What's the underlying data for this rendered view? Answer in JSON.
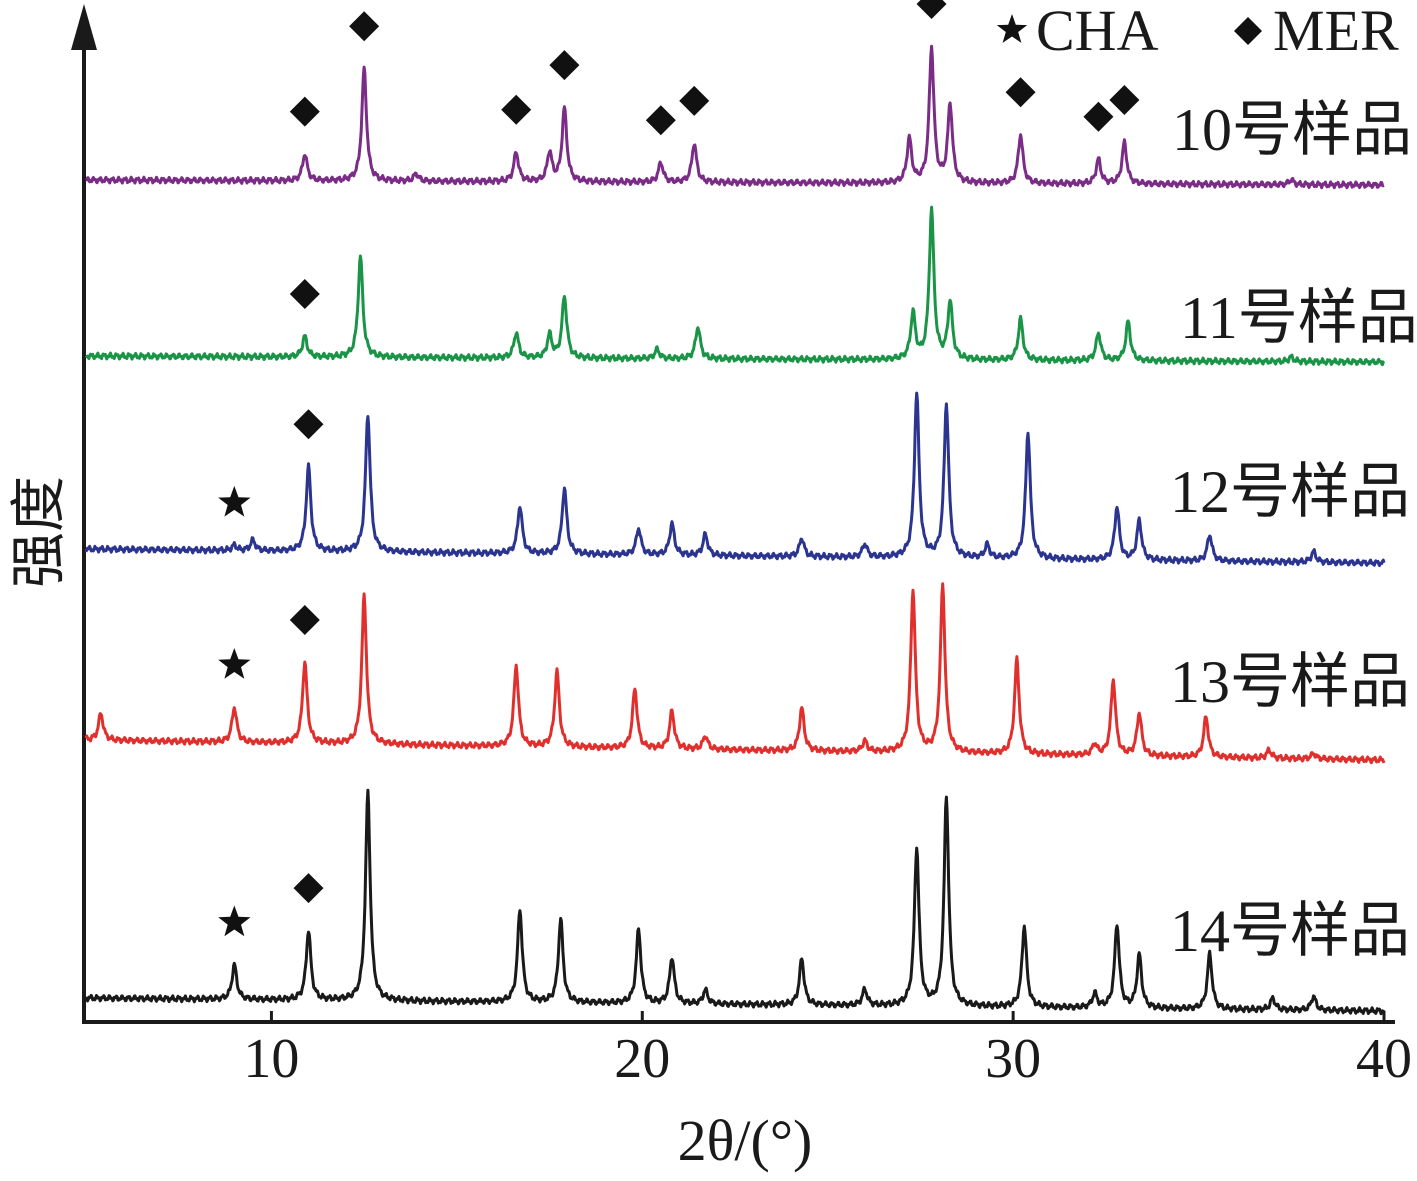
{
  "chart_data": {
    "type": "line",
    "title": "",
    "xlabel": "2θ/(°)",
    "ylabel": "强度",
    "xlim": [
      5,
      40
    ],
    "xticks": [
      "10",
      "20",
      "30",
      "40"
    ],
    "xtick_values": [
      10,
      20,
      30,
      40
    ],
    "y_ticks_shown": false,
    "legend": {
      "placement": "top-right",
      "entries": [
        {
          "marker": "star",
          "label": "CHA"
        },
        {
          "marker": "diamond",
          "label": "MER"
        }
      ]
    },
    "series": [
      {
        "name": "10号样品",
        "color": "#7a2c86",
        "baseline": 0.0,
        "peaks": [
          [
            10.9,
            0.11
          ],
          [
            12.5,
            0.46
          ],
          [
            13.9,
            0.03
          ],
          [
            16.6,
            0.12
          ],
          [
            17.5,
            0.12
          ],
          [
            17.9,
            0.3
          ],
          [
            20.5,
            0.08
          ],
          [
            21.4,
            0.16
          ],
          [
            27.2,
            0.18
          ],
          [
            27.8,
            0.55
          ],
          [
            28.3,
            0.32
          ],
          [
            30.2,
            0.2
          ],
          [
            32.3,
            0.1
          ],
          [
            33.0,
            0.17
          ],
          [
            37.5,
            0.02
          ]
        ],
        "annotations": [
          {
            "marker": "diamond",
            "x": 10.9
          },
          {
            "marker": "diamond",
            "x": 12.5
          },
          {
            "marker": "diamond",
            "x": 16.6
          },
          {
            "marker": "diamond",
            "x": 17.9
          },
          {
            "marker": "diamond",
            "x": 20.5
          },
          {
            "marker": "diamond",
            "x": 21.4
          },
          {
            "marker": "diamond",
            "x": 27.8
          },
          {
            "marker": "diamond",
            "x": 30.2
          },
          {
            "marker": "diamond",
            "x": 32.3
          },
          {
            "marker": "diamond",
            "x": 33.0
          }
        ]
      },
      {
        "name": "11号样品",
        "color": "#1a9446",
        "baseline": 0.0,
        "peaks": [
          [
            10.9,
            0.09
          ],
          [
            12.4,
            0.44
          ],
          [
            16.6,
            0.11
          ],
          [
            17.5,
            0.1
          ],
          [
            17.9,
            0.27
          ],
          [
            20.4,
            0.04
          ],
          [
            21.5,
            0.14
          ],
          [
            27.3,
            0.2
          ],
          [
            27.8,
            0.65
          ],
          [
            28.3,
            0.25
          ],
          [
            30.2,
            0.18
          ],
          [
            32.3,
            0.12
          ],
          [
            33.1,
            0.17
          ],
          [
            37.5,
            0.02
          ]
        ],
        "annotations": [
          {
            "marker": "diamond",
            "x": 10.9
          }
        ]
      },
      {
        "name": "12号样品",
        "color": "#2b3590",
        "baseline": 0.0,
        "peaks": [
          [
            9.0,
            0.02
          ],
          [
            9.5,
            0.04
          ],
          [
            11.0,
            0.32
          ],
          [
            12.6,
            0.52
          ],
          [
            16.7,
            0.18
          ],
          [
            17.9,
            0.25
          ],
          [
            19.9,
            0.1
          ],
          [
            20.8,
            0.12
          ],
          [
            21.7,
            0.08
          ],
          [
            24.3,
            0.07
          ],
          [
            26.0,
            0.05
          ],
          [
            27.4,
            0.62
          ],
          [
            28.2,
            0.58
          ],
          [
            29.3,
            0.05
          ],
          [
            30.4,
            0.48
          ],
          [
            32.8,
            0.2
          ],
          [
            33.4,
            0.15
          ],
          [
            35.3,
            0.1
          ],
          [
            38.1,
            0.04
          ]
        ],
        "annotations": [
          {
            "marker": "star",
            "x": 9.0
          },
          {
            "marker": "diamond",
            "x": 11.0
          }
        ]
      },
      {
        "name": "13号样品",
        "color": "#e0302d",
        "baseline": 0.0,
        "peaks": [
          [
            5.4,
            0.1
          ],
          [
            9.0,
            0.13
          ],
          [
            10.9,
            0.3
          ],
          [
            12.5,
            0.55
          ],
          [
            16.6,
            0.3
          ],
          [
            17.7,
            0.28
          ],
          [
            19.8,
            0.22
          ],
          [
            20.8,
            0.14
          ],
          [
            21.7,
            0.05
          ],
          [
            24.3,
            0.16
          ],
          [
            26.0,
            0.04
          ],
          [
            27.3,
            0.6
          ],
          [
            28.1,
            0.62
          ],
          [
            30.1,
            0.35
          ],
          [
            32.2,
            0.04
          ],
          [
            32.7,
            0.28
          ],
          [
            33.4,
            0.16
          ],
          [
            35.2,
            0.15
          ],
          [
            36.9,
            0.03
          ],
          [
            38.1,
            0.02
          ]
        ],
        "annotations": [
          {
            "marker": "star",
            "x": 9.0
          },
          {
            "marker": "diamond",
            "x": 10.9
          }
        ]
      },
      {
        "name": "14号样品",
        "color": "#1a1a1a",
        "baseline": 0.0,
        "peaks": [
          [
            9.0,
            0.15
          ],
          [
            11.0,
            0.3
          ],
          [
            12.6,
            0.9
          ],
          [
            16.7,
            0.4
          ],
          [
            17.8,
            0.36
          ],
          [
            19.9,
            0.32
          ],
          [
            20.8,
            0.2
          ],
          [
            21.7,
            0.06
          ],
          [
            24.3,
            0.2
          ],
          [
            26.0,
            0.07
          ],
          [
            27.4,
            0.68
          ],
          [
            28.2,
            0.9
          ],
          [
            30.3,
            0.35
          ],
          [
            32.2,
            0.06
          ],
          [
            32.8,
            0.36
          ],
          [
            33.4,
            0.23
          ],
          [
            35.3,
            0.24
          ],
          [
            37.0,
            0.05
          ],
          [
            38.1,
            0.06
          ]
        ],
        "annotations": [
          {
            "marker": "star",
            "x": 9.0
          },
          {
            "marker": "diamond",
            "x": 11.0
          }
        ]
      }
    ]
  }
}
